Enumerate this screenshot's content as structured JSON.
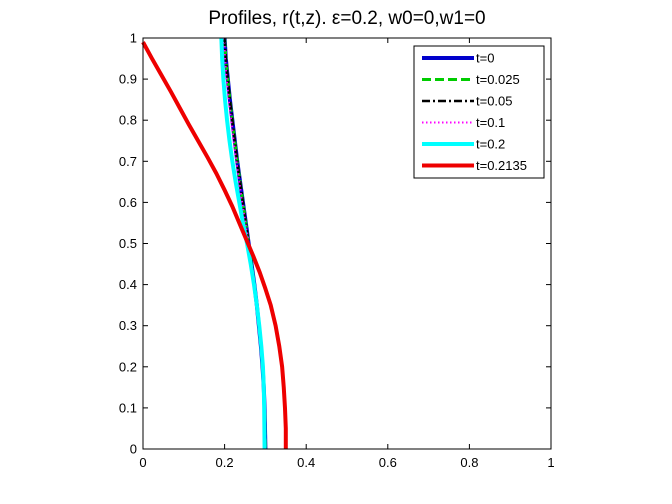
{
  "chart_data": {
    "type": "line",
    "title": "Profiles, r(t,z).   ε=0.2, w0=0,w1=0",
    "xlabel": "",
    "ylabel": "",
    "xlim": [
      0,
      1
    ],
    "ylim": [
      0,
      1
    ],
    "xticks": [
      "0",
      "0.2",
      "0.4",
      "0.6",
      "0.8",
      "1"
    ],
    "yticks": [
      "0",
      "0.1",
      "0.2",
      "0.3",
      "0.4",
      "0.5",
      "0.6",
      "0.7",
      "0.8",
      "0.9",
      "1"
    ],
    "grid": false,
    "legend_position": "top-right",
    "series": [
      {
        "name": "t=0",
        "color": "#0000cc",
        "style": "solid",
        "x": [
          0.2,
          0.203,
          0.208,
          0.213,
          0.219,
          0.225,
          0.231,
          0.238,
          0.245,
          0.252,
          0.259,
          0.266,
          0.273,
          0.279,
          0.284,
          0.289,
          0.293,
          0.296,
          0.298,
          0.3
        ],
        "y": [
          1.0,
          0.95,
          0.9,
          0.85,
          0.8,
          0.75,
          0.7,
          0.65,
          0.6,
          0.55,
          0.5,
          0.45,
          0.4,
          0.35,
          0.3,
          0.25,
          0.2,
          0.15,
          0.1,
          0.0
        ]
      },
      {
        "name": "t=0.025",
        "color": "#00cc00",
        "style": "dashed",
        "x": [
          0.2,
          0.203,
          0.208,
          0.213,
          0.219,
          0.225,
          0.231,
          0.238,
          0.245,
          0.252,
          0.259,
          0.266,
          0.273,
          0.279,
          0.284,
          0.289,
          0.293,
          0.296,
          0.298,
          0.3
        ],
        "y": [
          1.0,
          0.95,
          0.9,
          0.85,
          0.8,
          0.75,
          0.7,
          0.65,
          0.6,
          0.55,
          0.5,
          0.45,
          0.4,
          0.35,
          0.3,
          0.25,
          0.2,
          0.15,
          0.1,
          0.0
        ]
      },
      {
        "name": "t=0.05",
        "color": "#000000",
        "style": "dashdot",
        "x": [
          0.2,
          0.203,
          0.208,
          0.213,
          0.219,
          0.225,
          0.231,
          0.238,
          0.245,
          0.252,
          0.259,
          0.266,
          0.273,
          0.279,
          0.284,
          0.289,
          0.293,
          0.296,
          0.298,
          0.3
        ],
        "y": [
          1.0,
          0.95,
          0.9,
          0.85,
          0.8,
          0.75,
          0.7,
          0.65,
          0.6,
          0.55,
          0.5,
          0.45,
          0.4,
          0.35,
          0.3,
          0.25,
          0.2,
          0.15,
          0.1,
          0.0
        ]
      },
      {
        "name": "t=0.1",
        "color": "#ff00ff",
        "style": "dotted",
        "x": [
          0.199,
          0.201,
          0.205,
          0.21,
          0.216,
          0.222,
          0.229,
          0.236,
          0.243,
          0.251,
          0.259,
          0.266,
          0.273,
          0.279,
          0.284,
          0.289,
          0.293,
          0.296,
          0.298,
          0.3
        ],
        "y": [
          1.0,
          0.95,
          0.9,
          0.85,
          0.8,
          0.75,
          0.7,
          0.65,
          0.6,
          0.55,
          0.5,
          0.45,
          0.4,
          0.35,
          0.3,
          0.25,
          0.2,
          0.15,
          0.1,
          0.0
        ]
      },
      {
        "name": "t=0.2",
        "color": "#00ffff",
        "style": "solid",
        "x": [
          0.192,
          0.194,
          0.197,
          0.201,
          0.206,
          0.212,
          0.219,
          0.227,
          0.236,
          0.245,
          0.255,
          0.264,
          0.272,
          0.279,
          0.285,
          0.29,
          0.294,
          0.296,
          0.297,
          0.298
        ],
        "y": [
          1.0,
          0.95,
          0.9,
          0.85,
          0.8,
          0.75,
          0.7,
          0.65,
          0.6,
          0.55,
          0.5,
          0.45,
          0.4,
          0.35,
          0.3,
          0.25,
          0.2,
          0.15,
          0.1,
          0.0
        ]
      },
      {
        "name": "t=0.2135",
        "color": "#ee0000",
        "style": "solid",
        "x": [
          0.0,
          0.022,
          0.045,
          0.068,
          0.09,
          0.112,
          0.135,
          0.158,
          0.18,
          0.2,
          0.219,
          0.236,
          0.253,
          0.27,
          0.286,
          0.3,
          0.313,
          0.325,
          0.334,
          0.341,
          0.345,
          0.348,
          0.35,
          0.35
        ],
        "y": [
          0.99,
          0.95,
          0.91,
          0.87,
          0.83,
          0.79,
          0.75,
          0.71,
          0.67,
          0.63,
          0.59,
          0.55,
          0.51,
          0.47,
          0.43,
          0.39,
          0.35,
          0.3,
          0.25,
          0.2,
          0.15,
          0.1,
          0.05,
          0.0
        ]
      }
    ]
  }
}
